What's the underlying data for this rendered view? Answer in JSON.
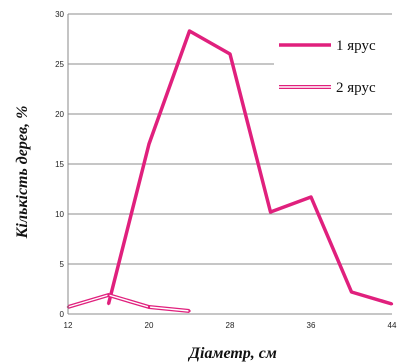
{
  "chart_data": {
    "type": "line",
    "xlabel": "Діаметр, см",
    "ylabel": "Кількість дерев, %",
    "xlim": [
      12,
      44
    ],
    "ylim": [
      0,
      30
    ],
    "x_ticks": [
      12,
      20,
      28,
      36,
      44
    ],
    "y_ticks": [
      0,
      5,
      10,
      15,
      20,
      25,
      30
    ],
    "grid": "horizontal",
    "legend_position": "top-right",
    "series": [
      {
        "name": "1 ярус",
        "color": "#e0207d",
        "style": "solid",
        "points": [
          {
            "x": 16,
            "y": 1
          },
          {
            "x": 20,
            "y": 17
          },
          {
            "x": 24,
            "y": 28.3
          },
          {
            "x": 28,
            "y": 26
          },
          {
            "x": 32,
            "y": 10.2
          },
          {
            "x": 36,
            "y": 11.7
          },
          {
            "x": 40,
            "y": 2.2
          },
          {
            "x": 44,
            "y": 1
          }
        ]
      },
      {
        "name": "2 ярус",
        "color": "#e0207d",
        "style": "double",
        "points": [
          {
            "x": 12,
            "y": 0.7
          },
          {
            "x": 16,
            "y": 1.9
          },
          {
            "x": 20,
            "y": 0.7
          },
          {
            "x": 24,
            "y": 0.3
          }
        ]
      }
    ]
  }
}
